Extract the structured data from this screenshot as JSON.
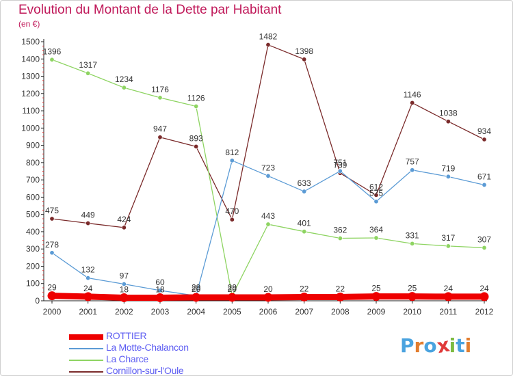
{
  "title": "Evolution du Montant de la Dette par Habitant",
  "unit": "(en €)",
  "logo": {
    "text": "Proxiti",
    "letter_colors": [
      "#4aa3df",
      "#e27d2e",
      "#4aa3df",
      "#e03a3a",
      "#7dbb42",
      "#4aa3df",
      "#e27d2e"
    ]
  },
  "chart_data": {
    "type": "line",
    "x": [
      "2000",
      "2001",
      "2002",
      "2003",
      "2004",
      "2005",
      "2006",
      "2007",
      "2008",
      "2009",
      "2010",
      "2011",
      "2012"
    ],
    "ylim": [
      0,
      1500
    ],
    "yticks": [
      0,
      100,
      200,
      300,
      400,
      500,
      600,
      700,
      800,
      900,
      1000,
      1100,
      1200,
      1300,
      1400,
      1500
    ],
    "grid": false,
    "legend_position": "bottom-left",
    "series": [
      {
        "name": "ROTTIER",
        "color": "#ee0000",
        "width": 9,
        "values": [
          29,
          24,
          18,
          18,
          20,
          20,
          20,
          22,
          22,
          25,
          25,
          24,
          24
        ]
      },
      {
        "name": "La Motte-Chalancon",
        "color": "#5b9bd5",
        "width": 1.3,
        "values": [
          278,
          132,
          97,
          60,
          29,
          812,
          723,
          633,
          751,
          575,
          757,
          719,
          671
        ]
      },
      {
        "name": "La Charce",
        "color": "#8ed462",
        "width": 1.3,
        "values": [
          1396,
          1317,
          1234,
          1176,
          1126,
          29,
          443,
          401,
          362,
          364,
          331,
          317,
          307
        ]
      },
      {
        "name": "Cornillon-sur-l'Oule",
        "color": "#7a2a2a",
        "width": 1.3,
        "values": [
          475,
          449,
          424,
          947,
          893,
          470,
          1482,
          1398,
          739,
          612,
          1146,
          1038,
          934
        ]
      }
    ]
  }
}
